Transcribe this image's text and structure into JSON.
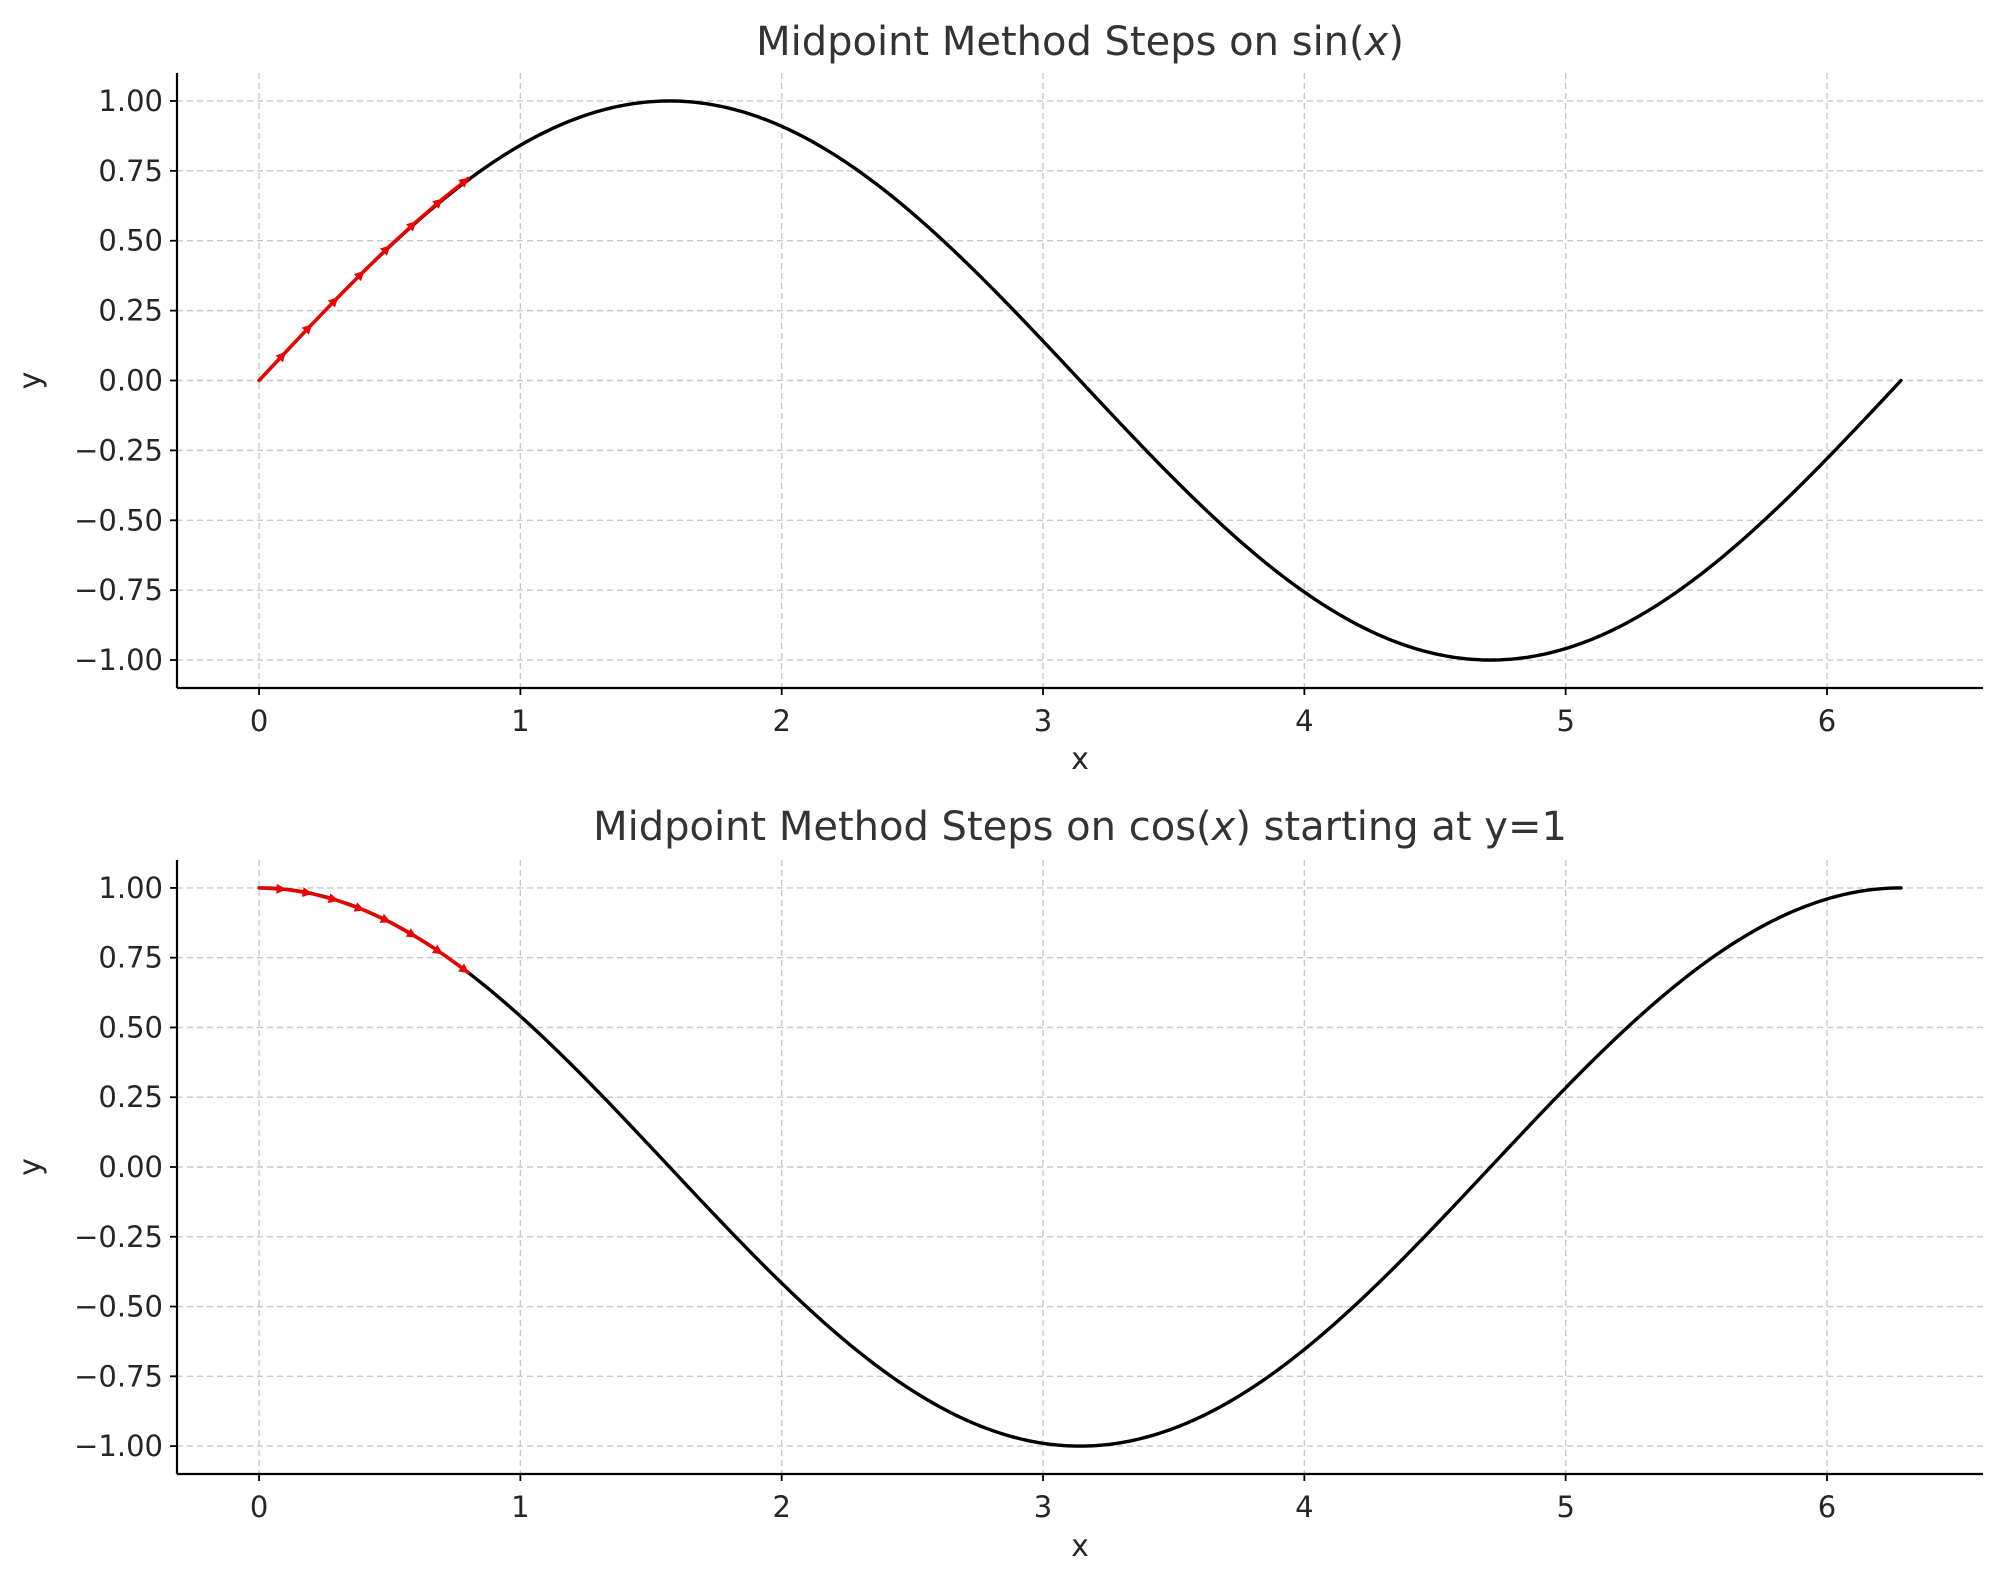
{
  "chart_data": [
    {
      "type": "line",
      "title": {
        "before": "Midpoint Method Steps on sin(",
        "var": "x",
        "after": ")"
      },
      "xlabel": "x",
      "ylabel": "y",
      "xlim": [
        -0.314,
        6.597
      ],
      "ylim": [
        -1.1,
        1.1
      ],
      "x_ticks": [
        0,
        1,
        2,
        3,
        4,
        5,
        6
      ],
      "x_tick_labels": [
        "0",
        "1",
        "2",
        "3",
        "4",
        "5",
        "6"
      ],
      "y_ticks": [
        1.0,
        0.75,
        0.5,
        0.25,
        0.0,
        -0.25,
        -0.5,
        -0.75,
        -1.0
      ],
      "y_tick_labels": [
        "1.00",
        "0.75",
        "0.50",
        "0.25",
        "0.00",
        "−0.25",
        "−0.50",
        "−0.75",
        "−1.00"
      ],
      "grid": true,
      "curve": {
        "function": "sin",
        "x_range": [
          0,
          6.2832
        ],
        "x": [
          0.0,
          0.5,
          1.0,
          1.5708,
          2.0,
          2.5,
          3.0,
          3.1416,
          3.5,
          4.0,
          4.5,
          4.7124,
          5.0,
          5.5,
          6.0,
          6.2832
        ],
        "y": [
          0.0,
          0.479,
          0.841,
          1.0,
          0.909,
          0.598,
          0.141,
          0.0,
          -0.351,
          -0.757,
          -0.978,
          -1.0,
          -0.959,
          -0.706,
          -0.279,
          0.0
        ],
        "color": "#000000"
      },
      "steps": {
        "x": [
          0.0,
          0.1,
          0.2,
          0.3,
          0.4,
          0.5,
          0.6,
          0.7,
          0.8
        ],
        "y": [
          0.0,
          0.1,
          0.199,
          0.296,
          0.39,
          0.481,
          0.567,
          0.648,
          0.723
        ],
        "color": "#ee0000"
      }
    },
    {
      "type": "line",
      "title": {
        "before": "Midpoint Method Steps on cos(",
        "var": "x",
        "after": ") starting at y=1"
      },
      "xlabel": "x",
      "ylabel": "y",
      "xlim": [
        -0.314,
        6.597
      ],
      "ylim": [
        -1.1,
        1.1
      ],
      "x_ticks": [
        0,
        1,
        2,
        3,
        4,
        5,
        6
      ],
      "x_tick_labels": [
        "0",
        "1",
        "2",
        "3",
        "4",
        "5",
        "6"
      ],
      "y_ticks": [
        1.0,
        0.75,
        0.5,
        0.25,
        0.0,
        -0.25,
        -0.5,
        -0.75,
        -1.0
      ],
      "y_tick_labels": [
        "1.00",
        "0.75",
        "0.50",
        "0.25",
        "0.00",
        "−0.25",
        "−0.50",
        "−0.75",
        "−1.00"
      ],
      "grid": true,
      "curve": {
        "function": "cos",
        "x_range": [
          0,
          6.2832
        ],
        "x": [
          0.0,
          0.5,
          1.0,
          1.5708,
          2.0,
          2.5,
          3.0,
          3.1416,
          3.5,
          4.0,
          4.5,
          4.7124,
          5.0,
          5.5,
          6.0,
          6.2832
        ],
        "y": [
          1.0,
          0.878,
          0.54,
          0.0,
          -0.416,
          -0.801,
          -0.99,
          -1.0,
          -0.936,
          -0.654,
          -0.211,
          0.0,
          0.284,
          0.709,
          0.96,
          1.0
        ],
        "color": "#000000"
      },
      "steps": {
        "x": [
          0.0,
          0.1,
          0.2,
          0.3,
          0.4,
          0.5,
          0.6,
          0.7,
          0.8
        ],
        "y": [
          1.0,
          0.995,
          0.98,
          0.955,
          0.921,
          0.878,
          0.825,
          0.765,
          0.697
        ],
        "color": "#ee0000"
      }
    }
  ]
}
